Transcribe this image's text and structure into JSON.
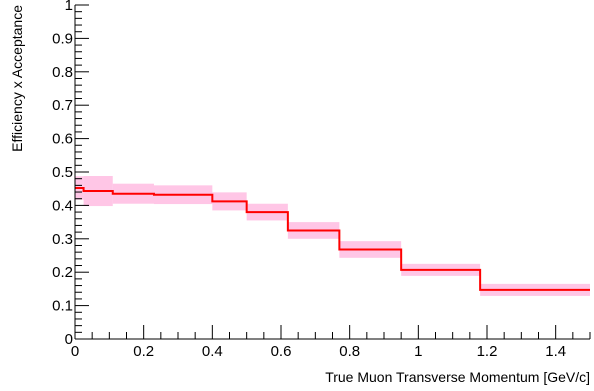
{
  "chart_data": {
    "type": "line",
    "step": true,
    "xlabel": "True Muon Transverse Momentum [GeV/c]",
    "ylabel": "Efficiency x Acceptance",
    "xlim": [
      0,
      1.5
    ],
    "ylim": [
      0,
      1
    ],
    "x_ticks": [
      0,
      0.2,
      0.4,
      0.6,
      0.8,
      1,
      1.2,
      1.4
    ],
    "x_tick_labels": [
      "0",
      "0.2",
      "0.4",
      "0.6",
      "0.8",
      "1",
      "1.2",
      "1.4"
    ],
    "y_ticks": [
      0,
      0.1,
      0.2,
      0.3,
      0.4,
      0.5,
      0.6,
      0.7,
      0.8,
      0.9,
      1
    ],
    "y_tick_labels": [
      "0",
      "0.1",
      "0.2",
      "0.3",
      "0.4",
      "0.5",
      "0.6",
      "0.7",
      "0.8",
      "0.9",
      "1"
    ],
    "grid": false,
    "line_color": "#ff0000",
    "band_color": "#ffb3dd",
    "bins": [
      {
        "x_low": 0.0,
        "x_high": 0.025,
        "value": 0.452,
        "err": 0.035
      },
      {
        "x_low": 0.025,
        "x_high": 0.11,
        "value": 0.443,
        "err": 0.045
      },
      {
        "x_low": 0.11,
        "x_high": 0.23,
        "value": 0.435,
        "err": 0.03
      },
      {
        "x_low": 0.23,
        "x_high": 0.4,
        "value": 0.432,
        "err": 0.028
      },
      {
        "x_low": 0.4,
        "x_high": 0.5,
        "value": 0.412,
        "err": 0.027
      },
      {
        "x_low": 0.5,
        "x_high": 0.62,
        "value": 0.38,
        "err": 0.025
      },
      {
        "x_low": 0.62,
        "x_high": 0.77,
        "value": 0.325,
        "err": 0.025
      },
      {
        "x_low": 0.77,
        "x_high": 0.95,
        "value": 0.268,
        "err": 0.025
      },
      {
        "x_low": 0.95,
        "x_high": 1.18,
        "value": 0.207,
        "err": 0.018
      },
      {
        "x_low": 1.18,
        "x_high": 1.5,
        "value": 0.147,
        "err": 0.018
      }
    ]
  }
}
